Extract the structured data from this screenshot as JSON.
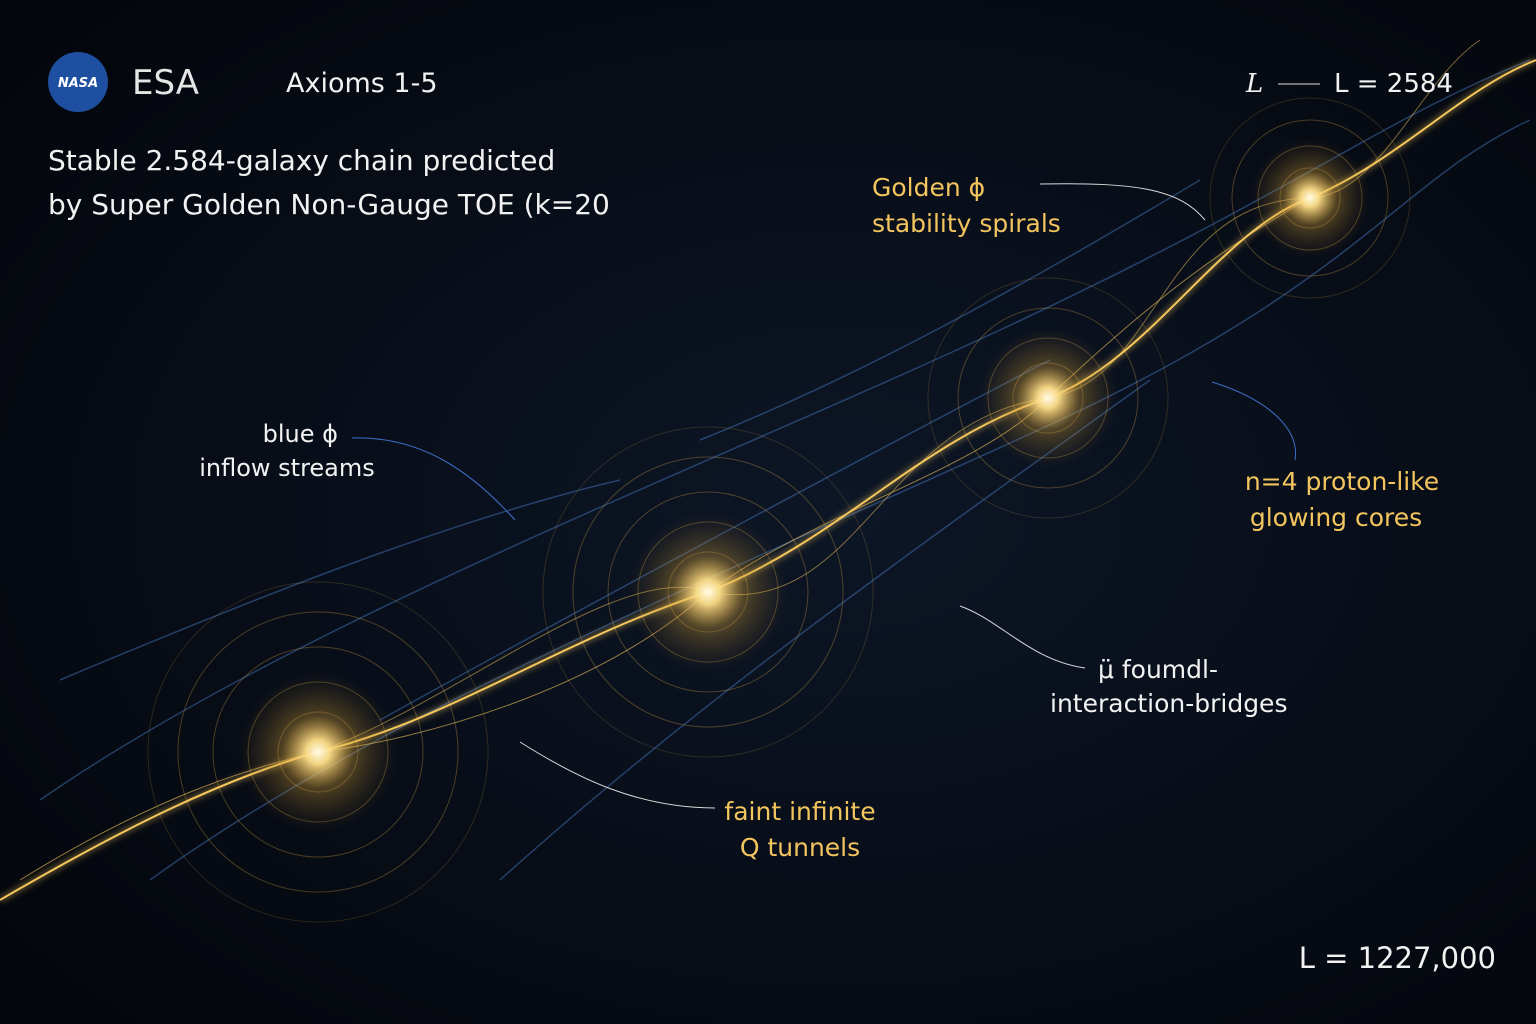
{
  "header": {
    "logos": [
      "NASA",
      "ESA"
    ],
    "subtitle": "Axioms 1-5",
    "title_lines": [
      "Stable 2.584-galaxy chain predicted",
      "by Super Golden Non-Gauge TOE   (k=20"
    ],
    "scale": {
      "left": "L",
      "right": "L = 2584"
    }
  },
  "annotations": [
    {
      "lines": [
        "Golden ϕ",
        "stability spirals"
      ]
    },
    {
      "lines": [
        "blue ϕ",
        "inflow streams"
      ]
    },
    {
      "lines": [
        "n=4 proton-like",
        "glowing cores"
      ]
    },
    {
      "lines": [
        "μ̈ foumdl-",
        "interaction-bridges"
      ]
    },
    {
      "lines": [
        "faint infinite",
        "Q tunnels"
      ]
    }
  ],
  "footer": "L = 1227,000"
}
